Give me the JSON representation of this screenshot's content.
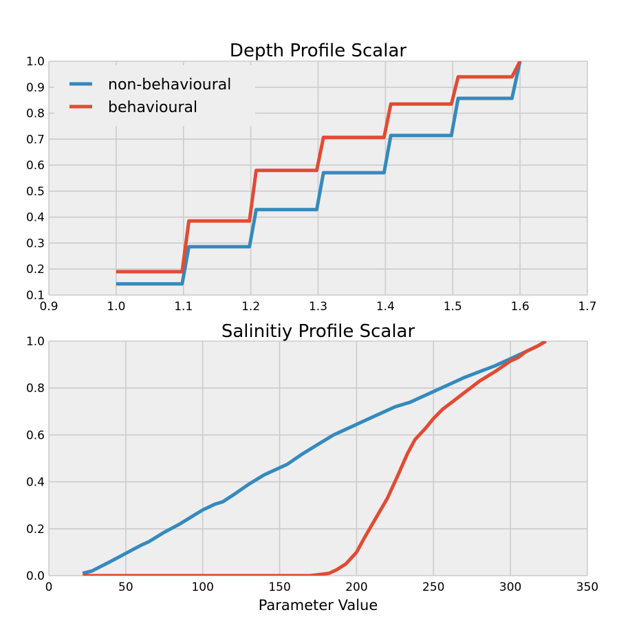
{
  "chart_data": [
    {
      "type": "line",
      "title": "Depth Profile Scalar",
      "xlabel": "",
      "ylabel": "",
      "xlim": [
        0.9,
        1.7
      ],
      "ylim": [
        0.1,
        1.0
      ],
      "xticks": [
        "0.9",
        "1.0",
        "1.1",
        "1.2",
        "1.3",
        "1.4",
        "1.5",
        "1.6",
        "1.7"
      ],
      "yticks": [
        "0.1",
        "0.2",
        "0.3",
        "0.4",
        "0.5",
        "0.6",
        "0.7",
        "0.8",
        "0.9",
        "1.0"
      ],
      "grid": true,
      "legend_position": "top-left",
      "series": [
        {
          "name": "non-behavioural",
          "color": "#348ABD",
          "x": [
            1.0,
            1.098,
            1.108,
            1.198,
            1.208,
            1.298,
            1.308,
            1.398,
            1.408,
            1.498,
            1.508,
            1.588,
            1.6
          ],
          "y": [
            0.143,
            0.143,
            0.286,
            0.286,
            0.429,
            0.429,
            0.571,
            0.571,
            0.714,
            0.714,
            0.857,
            0.857,
            1.0
          ]
        },
        {
          "name": "behavioural",
          "color": "#E24A33",
          "x": [
            1.0,
            1.098,
            1.108,
            1.198,
            1.208,
            1.298,
            1.308,
            1.398,
            1.408,
            1.498,
            1.508,
            1.588,
            1.6
          ],
          "y": [
            0.19,
            0.19,
            0.385,
            0.385,
            0.58,
            0.58,
            0.707,
            0.707,
            0.835,
            0.835,
            0.94,
            0.94,
            1.0
          ]
        }
      ]
    },
    {
      "type": "line",
      "title": "Salinitiy Profile Scalar",
      "xlabel": "Parameter Value",
      "ylabel": "",
      "xlim": [
        0,
        350
      ],
      "ylim": [
        0.0,
        1.0
      ],
      "xticks": [
        "0",
        "50",
        "100",
        "150",
        "200",
        "250",
        "300",
        "350"
      ],
      "yticks": [
        "0.0",
        "0.2",
        "0.4",
        "0.6",
        "0.8",
        "1.0"
      ],
      "grid": true,
      "series": [
        {
          "color": "#348ABD",
          "x": [
            22,
            28,
            40,
            50,
            60,
            65,
            75,
            85,
            95,
            100,
            108,
            113,
            120,
            130,
            140,
            150,
            155,
            165,
            175,
            185,
            190,
            195,
            205,
            215,
            225,
            235,
            240,
            250,
            260,
            270,
            280,
            290,
            300,
            310,
            318,
            323
          ],
          "y": [
            0.01,
            0.02,
            0.06,
            0.095,
            0.13,
            0.145,
            0.185,
            0.22,
            0.26,
            0.28,
            0.305,
            0.315,
            0.345,
            0.39,
            0.43,
            0.46,
            0.475,
            0.52,
            0.56,
            0.6,
            0.615,
            0.63,
            0.66,
            0.69,
            0.72,
            0.74,
            0.755,
            0.785,
            0.815,
            0.845,
            0.87,
            0.895,
            0.925,
            0.955,
            0.98,
            1.0
          ]
        },
        {
          "color": "#E24A33",
          "x": [
            22,
            170,
            182,
            187,
            193,
            200,
            205,
            212,
            220,
            227,
            233,
            238,
            245,
            250,
            256,
            262,
            270,
            280,
            290,
            300,
            305,
            310,
            318,
            323
          ],
          "y": [
            0.0,
            0.0,
            0.01,
            0.025,
            0.05,
            0.1,
            0.16,
            0.24,
            0.33,
            0.43,
            0.52,
            0.58,
            0.63,
            0.67,
            0.71,
            0.74,
            0.78,
            0.83,
            0.87,
            0.915,
            0.93,
            0.955,
            0.98,
            1.0
          ]
        }
      ]
    }
  ]
}
